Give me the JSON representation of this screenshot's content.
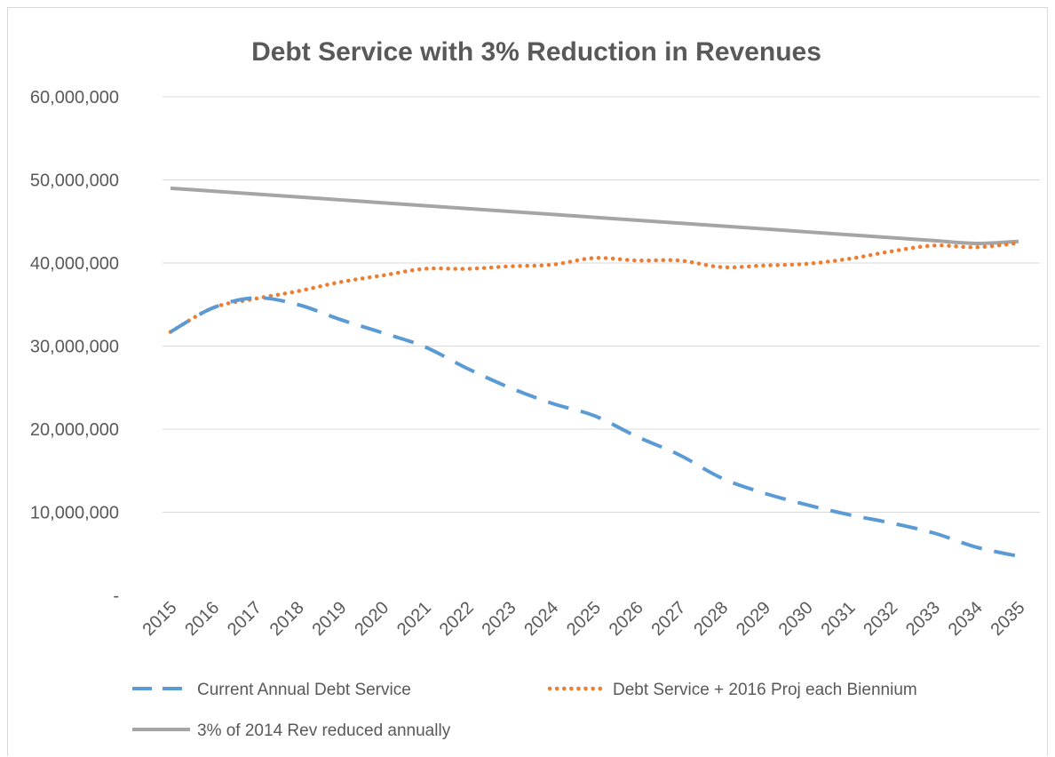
{
  "chart_data": {
    "type": "line",
    "title": "Debt Service with 3% Reduction in Revenues",
    "xlabel": "",
    "ylabel": "",
    "categories": [
      "2015",
      "2016",
      "2017",
      "2018",
      "2019",
      "2020",
      "2021",
      "2022",
      "2023",
      "2024",
      "2025",
      "2026",
      "2027",
      "2028",
      "2029",
      "2030",
      "2031",
      "2032",
      "2033",
      "2034",
      "2035"
    ],
    "ylim": [
      0,
      60000000
    ],
    "y_ticks": [
      0,
      10000000,
      20000000,
      30000000,
      40000000,
      50000000,
      60000000
    ],
    "y_tick_labels": [
      "-",
      "10,000,000",
      "20,000,000",
      "30,000,000",
      "40,000,000",
      "50,000,000",
      "60,000,000"
    ],
    "grid": "horizontal",
    "legend_position": "bottom",
    "series": [
      {
        "name": "Current Annual Debt Service",
        "style": "dashed",
        "color": "#5b9bd5",
        "values": [
          31700000,
          34600000,
          35800000,
          35000000,
          33200000,
          31600000,
          29900000,
          27300000,
          25000000,
          23100000,
          21600000,
          19100000,
          16900000,
          14100000,
          12300000,
          10900000,
          9700000,
          8700000,
          7500000,
          5800000,
          4700000
        ]
      },
      {
        "name": "Debt Service + 2016 Proj each Biennium",
        "style": "dotted",
        "color": "#ed7d31",
        "values": [
          31700000,
          34600000,
          35700000,
          36600000,
          37700000,
          38500000,
          39300000,
          39300000,
          39600000,
          39800000,
          40600000,
          40300000,
          40300000,
          39500000,
          39700000,
          39900000,
          40500000,
          41400000,
          42100000,
          41900000,
          42400000
        ]
      },
      {
        "name": "3% of 2014 Rev reduced annually",
        "style": "solid",
        "color": "#a5a5a5",
        "values": [
          49000000,
          48650000,
          48300000,
          47950000,
          47600000,
          47250000,
          46900000,
          46550000,
          46200000,
          45850000,
          45500000,
          45150000,
          44800000,
          44450000,
          44100000,
          43750000,
          43400000,
          43050000,
          42700000,
          42350000,
          42600000
        ]
      }
    ]
  }
}
